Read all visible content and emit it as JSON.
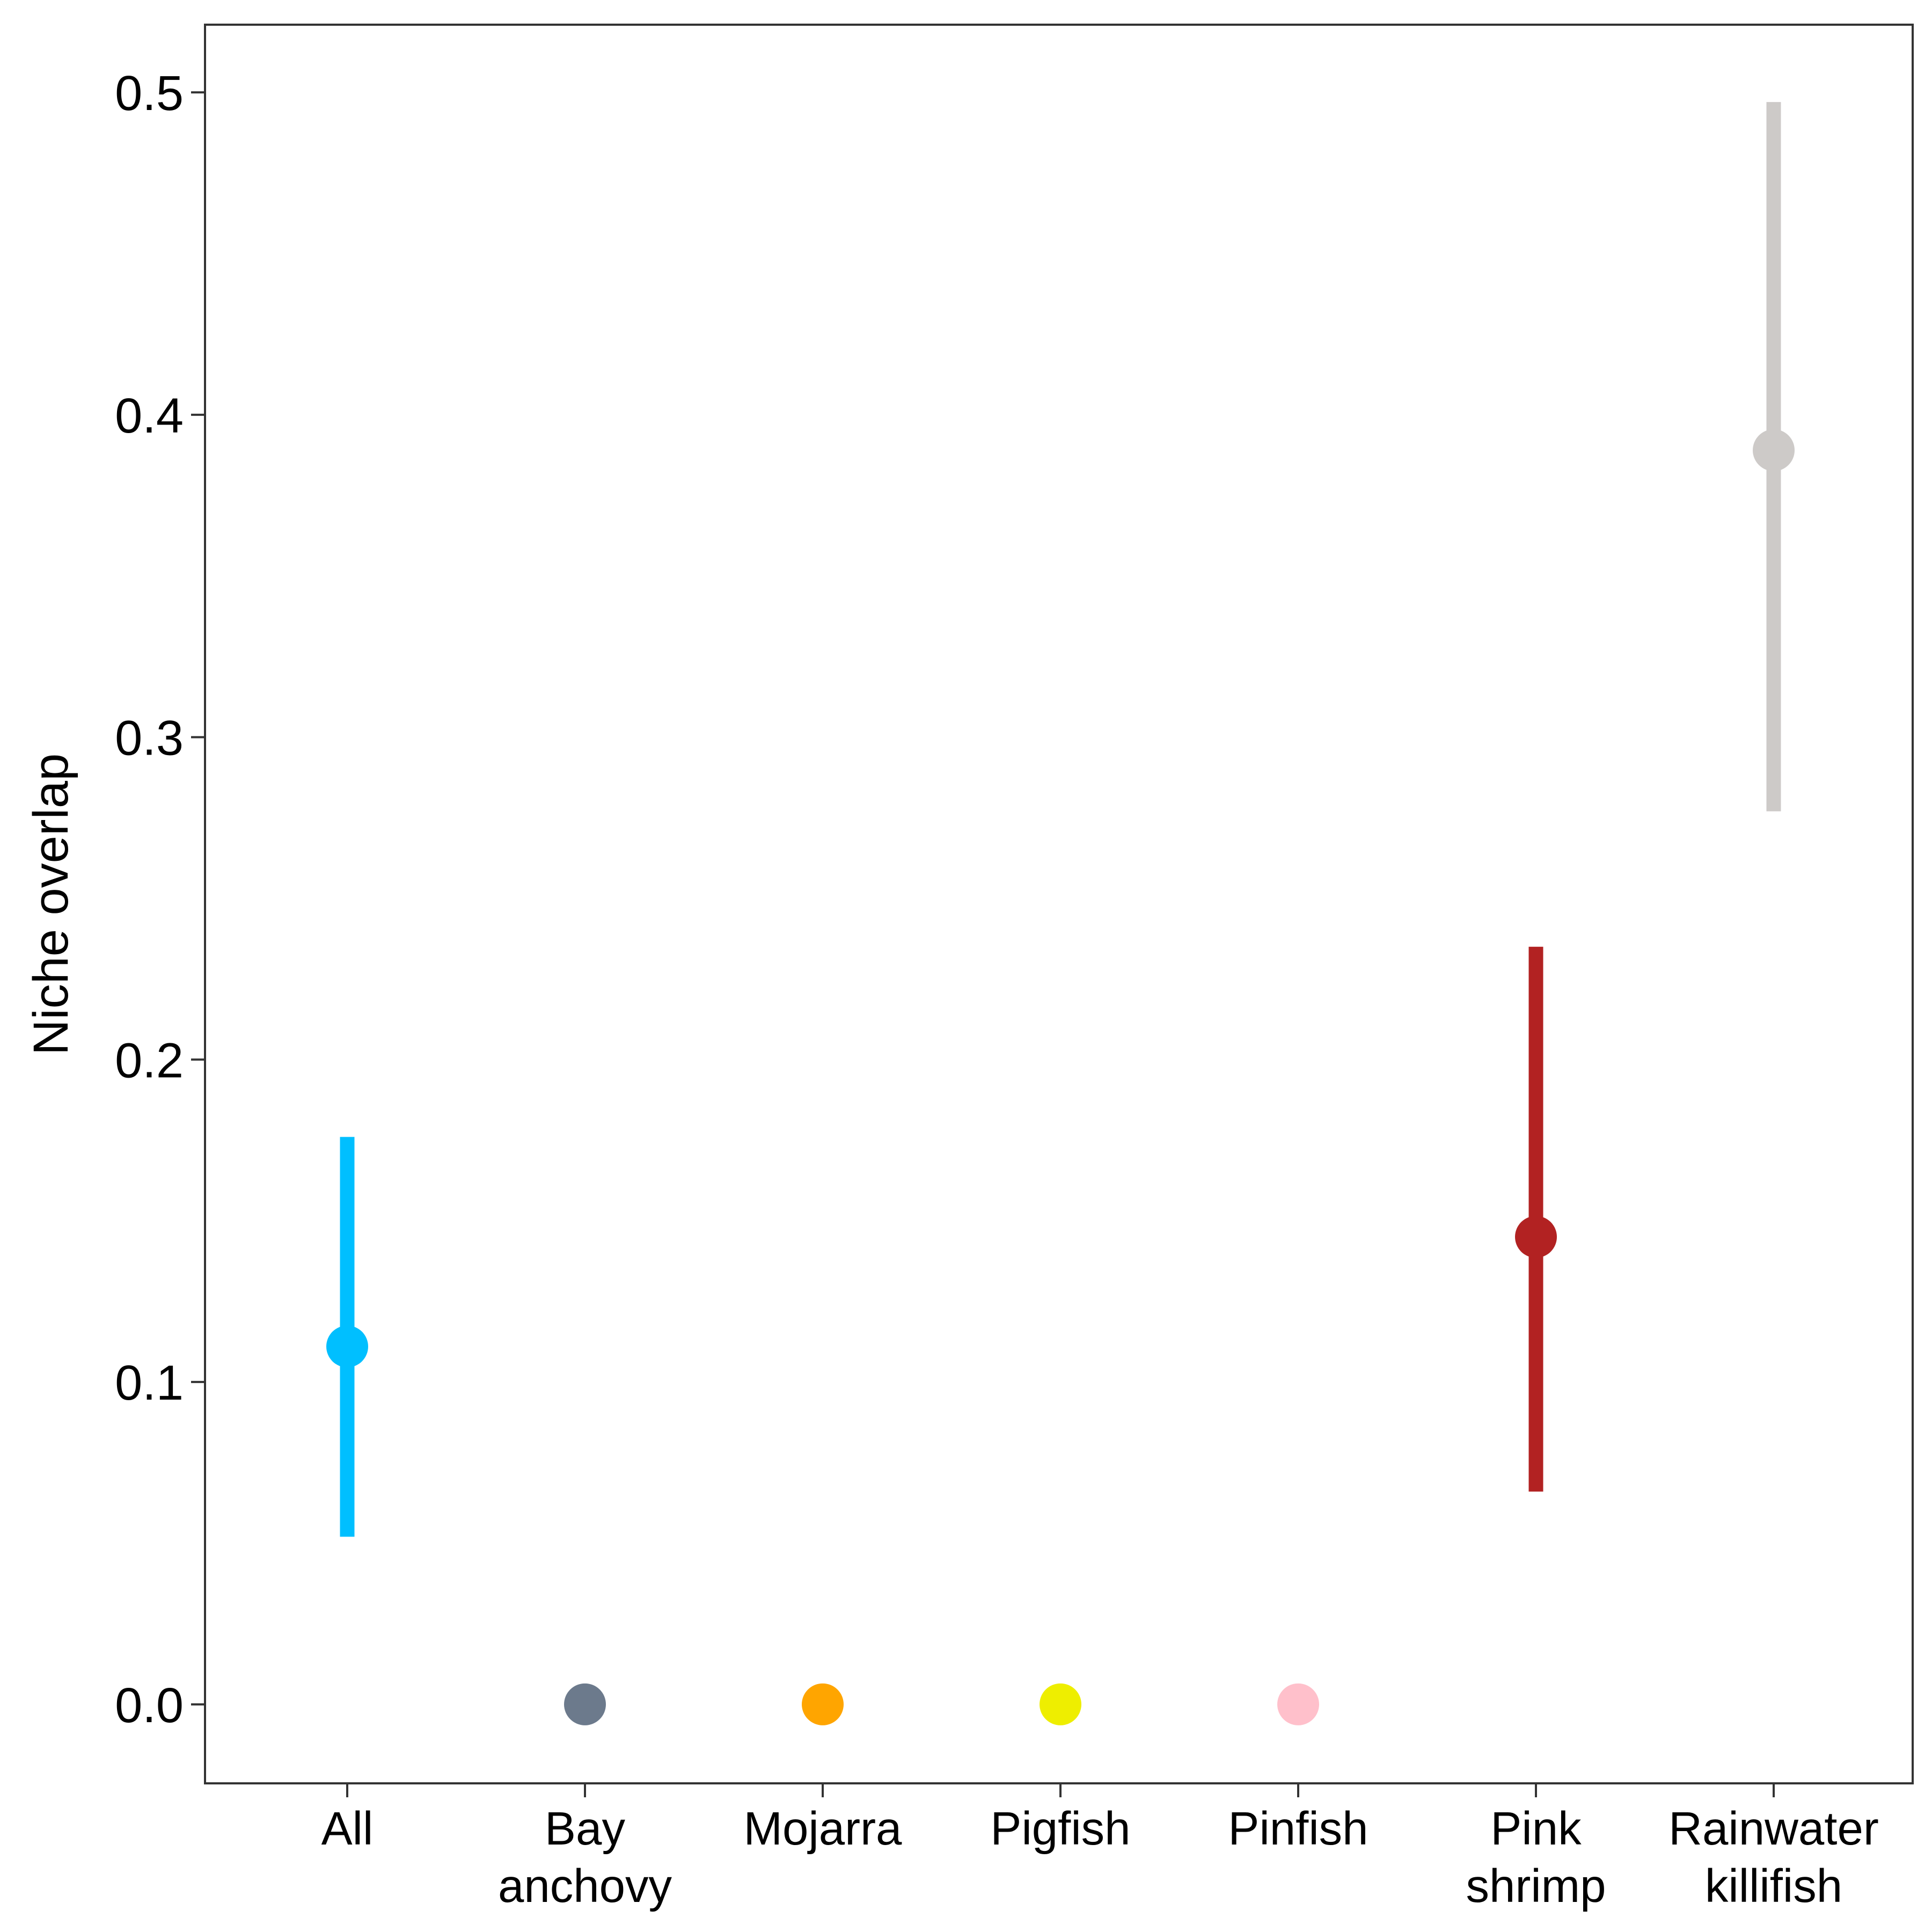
{
  "chart_data": {
    "type": "scatter",
    "title": "",
    "xlabel": "",
    "ylabel": "Niche overlap",
    "ylim": [
      -0.0245,
      0.521
    ],
    "y_ticks": [
      "0.0",
      "0.1",
      "0.2",
      "0.3",
      "0.4",
      "0.5"
    ],
    "y_tick_values": [
      0.0,
      0.1,
      0.2,
      0.3,
      0.4,
      0.5
    ],
    "grid": false,
    "legend": "none",
    "categories": [
      [
        "All"
      ],
      [
        "Bay",
        "anchovy"
      ],
      [
        "Mojarra"
      ],
      [
        "Pigfish"
      ],
      [
        "Pinfish"
      ],
      [
        "Pink",
        "shrimp"
      ],
      [
        "Rainwater",
        "killifish"
      ]
    ],
    "points": [
      {
        "category": "All",
        "y": 0.111,
        "ymin": 0.052,
        "ymax": 0.176,
        "color": "#00BFFF"
      },
      {
        "category": "Bay anchovy",
        "y": 0.0,
        "ymin": null,
        "ymax": null,
        "color": "#6C7A8C"
      },
      {
        "category": "Mojarra",
        "y": 0.0,
        "ymin": null,
        "ymax": null,
        "color": "#FFA500"
      },
      {
        "category": "Pigfish",
        "y": 0.0,
        "ymin": null,
        "ymax": null,
        "color": "#EEEE00"
      },
      {
        "category": "Pinfish",
        "y": 0.0,
        "ymin": null,
        "ymax": null,
        "color": "#FFC0CB"
      },
      {
        "category": "Pink shrimp",
        "y": 0.145,
        "ymin": 0.066,
        "ymax": 0.235,
        "color": "#B22222"
      },
      {
        "category": "Rainwater killifish",
        "y": 0.389,
        "ymin": 0.277,
        "ymax": 0.497,
        "color": "#CDCAC8"
      }
    ]
  }
}
